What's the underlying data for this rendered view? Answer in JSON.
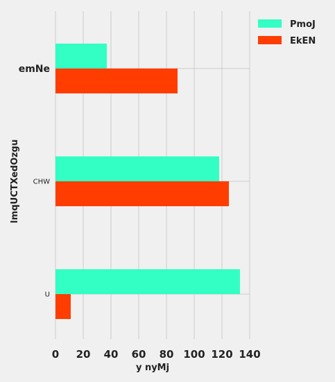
{
  "chart_data": {
    "type": "bar",
    "orientation": "horizontal",
    "categories": [
      "emNe",
      "CHW",
      "U"
    ],
    "series": [
      {
        "name": "PmoJ",
        "values": [
          37,
          118,
          133
        ]
      },
      {
        "name": "EkEN",
        "values": [
          88,
          125,
          11
        ]
      }
    ],
    "xlabel": "y nyMj",
    "ylabel": "lmqUCTXedOzgu",
    "xlim": [
      0,
      140
    ],
    "xticks": [
      0,
      20,
      40,
      60,
      80,
      100,
      120,
      140
    ],
    "grid": true,
    "legend_position": "top-right",
    "colors": {
      "PmoJ": "#33ffc4",
      "EkEN": "#ff3d00",
      "background": "#f0f0f0",
      "grid": "#cbcbcb"
    }
  }
}
